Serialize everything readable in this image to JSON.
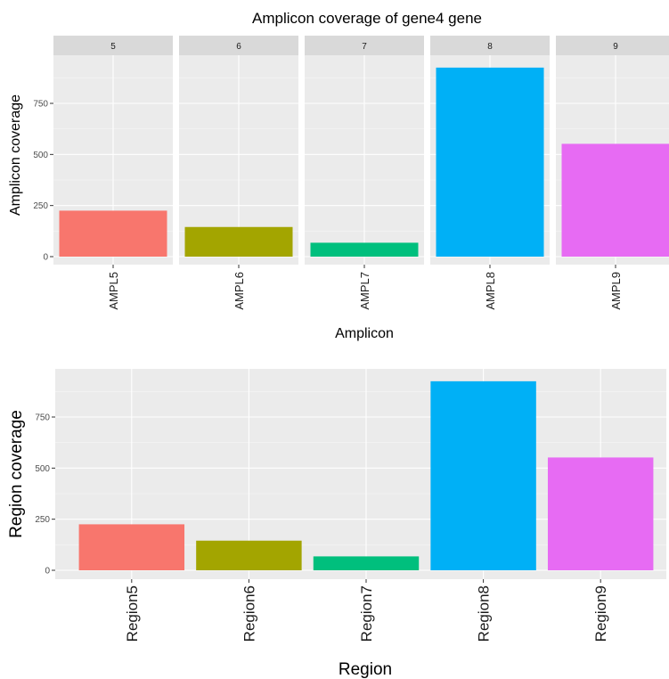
{
  "chart_data": [
    {
      "type": "bar",
      "facet": true,
      "title": "Amplicon coverage of  gene4 gene",
      "xlabel": "Amplicon",
      "ylabel": "Amplicon coverage",
      "facets": [
        "5",
        "6",
        "7",
        "8",
        "9"
      ],
      "categories": [
        "AMPL5",
        "AMPL6",
        "AMPL7",
        "AMPL8",
        "AMPL9"
      ],
      "values": [
        225,
        145,
        68,
        925,
        552
      ],
      "colors": [
        "#F8766D",
        "#A3A500",
        "#00BF7D",
        "#00B0F6",
        "#E76BF3"
      ],
      "yticks": [
        0,
        250,
        500,
        750
      ],
      "ylim": [
        0,
        971
      ],
      "grid": true,
      "legend": "none"
    },
    {
      "type": "bar",
      "title": "",
      "xlabel": "Region",
      "ylabel": "Region coverage",
      "categories": [
        "Region5",
        "Region6",
        "Region7",
        "Region8",
        "Region9"
      ],
      "values": [
        225,
        145,
        68,
        925,
        552
      ],
      "colors": [
        "#F8766D",
        "#A3A500",
        "#00BF7D",
        "#00B0F6",
        "#E76BF3"
      ],
      "yticks": [
        0,
        250,
        500,
        750
      ],
      "ylim": [
        -46,
        971
      ],
      "grid": true,
      "legend": "none"
    }
  ]
}
